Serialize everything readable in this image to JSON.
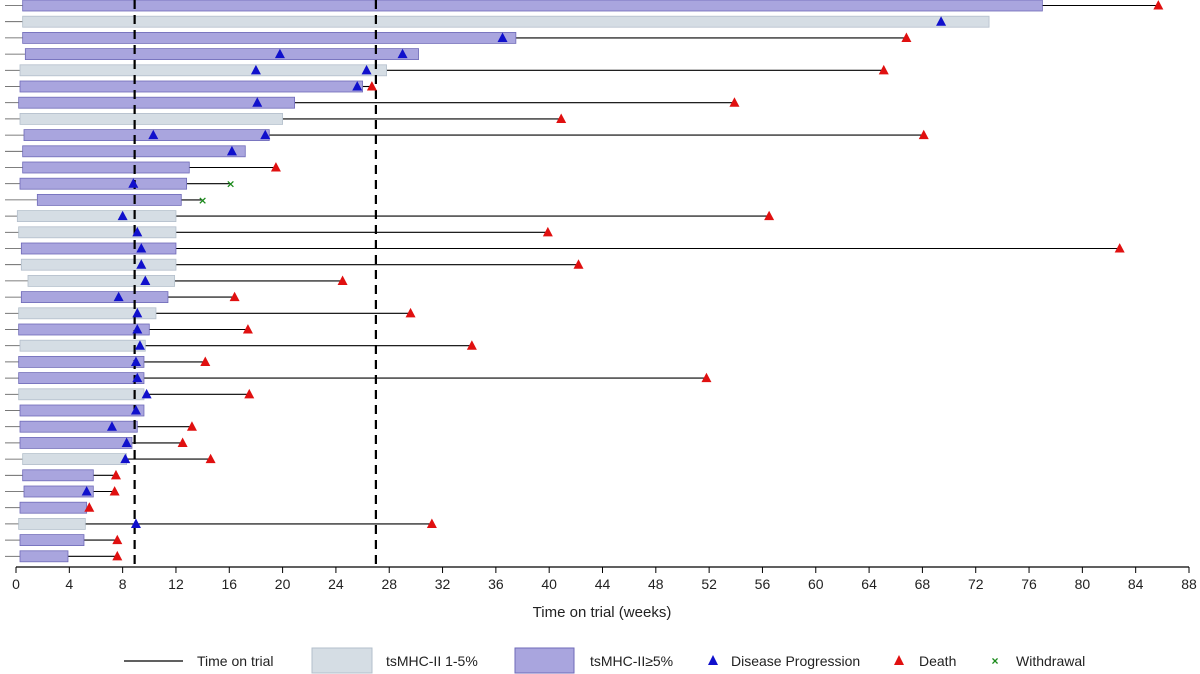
{
  "chart_data": {
    "type": "swimmer",
    "xlabel": "Time on trial (weeks)",
    "xlim": [
      0,
      88
    ],
    "xticks": [
      0,
      4,
      8,
      12,
      16,
      20,
      24,
      28,
      32,
      36,
      40,
      44,
      48,
      52,
      56,
      60,
      64,
      68,
      72,
      76,
      80,
      84,
      88
    ],
    "reference_lines": [
      8.9,
      27
    ],
    "colors": {
      "group_low": "#d5dde4",
      "group_high": "#a9a5de",
      "bar_border_low": "#b3bfcb",
      "bar_border_high": "#6f6ab8",
      "line": "#000000",
      "progression": "#1010cc",
      "death": "#e01010",
      "withdrawal": "#1a8a1a"
    },
    "legend": {
      "time_on_trial": "Time on trial",
      "group_low": "tsMHC-II 1-5%",
      "group_high": "tsMHC-II≥5%",
      "progression": "Disease Progression",
      "death": "Death",
      "withdrawal": "Withdrawal"
    },
    "patients": [
      {
        "bar_start": 0.5,
        "bar_end": 77,
        "group": "high",
        "end": 85.7,
        "progression": [],
        "death": 85.7,
        "withdrawal": null
      },
      {
        "bar_start": 0.5,
        "bar_end": 73,
        "group": "low",
        "end": 73,
        "progression": [
          69.4
        ],
        "death": null,
        "withdrawal": null
      },
      {
        "bar_start": 0.5,
        "bar_end": 37.5,
        "group": "high",
        "end": 66.8,
        "progression": [
          36.5
        ],
        "death": 66.8,
        "withdrawal": null
      },
      {
        "bar_start": 0.7,
        "bar_end": 30.2,
        "group": "high",
        "end": 30.2,
        "progression": [
          19.8,
          29.0
        ],
        "death": null,
        "withdrawal": null
      },
      {
        "bar_start": 0.3,
        "bar_end": 27.8,
        "group": "low",
        "end": 65.1,
        "progression": [
          18.0,
          26.3
        ],
        "death": 65.1,
        "withdrawal": null
      },
      {
        "bar_start": 0.3,
        "bar_end": 26.0,
        "group": "high",
        "end": 26.7,
        "progression": [
          25.6
        ],
        "death": 26.7,
        "withdrawal": null
      },
      {
        "bar_start": 0.2,
        "bar_end": 20.9,
        "group": "high",
        "end": 53.9,
        "progression": [
          18.1
        ],
        "death": 53.9,
        "withdrawal": null
      },
      {
        "bar_start": 0.3,
        "bar_end": 20.0,
        "group": "low",
        "end": 40.9,
        "progression": [],
        "death": 40.9,
        "withdrawal": null
      },
      {
        "bar_start": 0.6,
        "bar_end": 19.0,
        "group": "high",
        "end": 68.1,
        "progression": [
          10.3,
          18.7
        ],
        "death": 68.1,
        "withdrawal": null
      },
      {
        "bar_start": 0.5,
        "bar_end": 17.2,
        "group": "high",
        "end": 17.2,
        "progression": [
          16.2
        ],
        "death": null,
        "withdrawal": null
      },
      {
        "bar_start": 0.5,
        "bar_end": 13.0,
        "group": "high",
        "end": 19.5,
        "progression": [],
        "death": 19.5,
        "withdrawal": null
      },
      {
        "bar_start": 0.3,
        "bar_end": 12.8,
        "group": "high",
        "end": 16.1,
        "progression": [
          8.8
        ],
        "death": null,
        "withdrawal": 16.1
      },
      {
        "bar_start": 1.6,
        "bar_end": 12.4,
        "group": "high",
        "end": 14.0,
        "progression": [],
        "death": null,
        "withdrawal": 14.0
      },
      {
        "bar_start": 0.1,
        "bar_end": 12.0,
        "group": "low",
        "end": 56.5,
        "progression": [
          8.0
        ],
        "death": 56.5,
        "withdrawal": null
      },
      {
        "bar_start": 0.2,
        "bar_end": 12.0,
        "group": "low",
        "end": 39.9,
        "progression": [
          9.1
        ],
        "death": 39.9,
        "withdrawal": null
      },
      {
        "bar_start": 0.4,
        "bar_end": 12.0,
        "group": "high",
        "end": 82.8,
        "progression": [
          9.4
        ],
        "death": 82.8,
        "withdrawal": null
      },
      {
        "bar_start": 0.4,
        "bar_end": 12.0,
        "group": "low",
        "end": 42.2,
        "progression": [
          9.4
        ],
        "death": 42.2,
        "withdrawal": null
      },
      {
        "bar_start": 0.9,
        "bar_end": 11.9,
        "group": "low",
        "end": 24.5,
        "progression": [
          9.7
        ],
        "death": 24.5,
        "withdrawal": null
      },
      {
        "bar_start": 0.4,
        "bar_end": 11.4,
        "group": "high",
        "end": 16.4,
        "progression": [
          7.7
        ],
        "death": 16.4,
        "withdrawal": null
      },
      {
        "bar_start": 0.2,
        "bar_end": 10.5,
        "group": "low",
        "end": 29.6,
        "progression": [
          9.1
        ],
        "death": 29.6,
        "withdrawal": null
      },
      {
        "bar_start": 0.2,
        "bar_end": 10.0,
        "group": "high",
        "end": 17.4,
        "progression": [
          9.1
        ],
        "death": 17.4,
        "withdrawal": null
      },
      {
        "bar_start": 0.3,
        "bar_end": 9.7,
        "group": "low",
        "end": 34.2,
        "progression": [
          9.3
        ],
        "death": 34.2,
        "withdrawal": null
      },
      {
        "bar_start": 0.2,
        "bar_end": 9.6,
        "group": "high",
        "end": 14.2,
        "progression": [
          9.0
        ],
        "death": 14.2,
        "withdrawal": null
      },
      {
        "bar_start": 0.2,
        "bar_end": 9.6,
        "group": "high",
        "end": 51.8,
        "progression": [
          9.1
        ],
        "death": 51.8,
        "withdrawal": null
      },
      {
        "bar_start": 0.2,
        "bar_end": 9.6,
        "group": "low",
        "end": 17.5,
        "progression": [
          9.8
        ],
        "death": 17.5,
        "withdrawal": null
      },
      {
        "bar_start": 0.3,
        "bar_end": 9.6,
        "group": "high",
        "end": 9.6,
        "progression": [
          9.0
        ],
        "death": null,
        "withdrawal": null
      },
      {
        "bar_start": 0.3,
        "bar_end": 9.1,
        "group": "high",
        "end": 13.2,
        "progression": [
          7.2
        ],
        "death": 13.2,
        "withdrawal": null
      },
      {
        "bar_start": 0.3,
        "bar_end": 8.7,
        "group": "high",
        "end": 12.5,
        "progression": [
          8.3
        ],
        "death": 12.5,
        "withdrawal": null
      },
      {
        "bar_start": 0.5,
        "bar_end": 8.3,
        "group": "low",
        "end": 14.6,
        "progression": [
          8.2
        ],
        "death": 14.6,
        "withdrawal": null
      },
      {
        "bar_start": 0.5,
        "bar_end": 5.8,
        "group": "high",
        "end": 7.5,
        "progression": [],
        "death": 7.5,
        "withdrawal": null
      },
      {
        "bar_start": 0.6,
        "bar_end": 5.8,
        "group": "high",
        "end": 7.4,
        "progression": [
          5.3
        ],
        "death": 7.4,
        "withdrawal": null
      },
      {
        "bar_start": 0.3,
        "bar_end": 5.3,
        "group": "high",
        "end": 5.5,
        "progression": [],
        "death": 5.5,
        "withdrawal": null
      },
      {
        "bar_start": 0.2,
        "bar_end": 5.2,
        "group": "low",
        "end": 31.2,
        "progression": [
          9.0
        ],
        "death": 31.2,
        "withdrawal": null
      },
      {
        "bar_start": 0.3,
        "bar_end": 5.1,
        "group": "high",
        "end": 7.6,
        "progression": [],
        "death": 7.6,
        "withdrawal": null
      },
      {
        "bar_start": 0.3,
        "bar_end": 3.9,
        "group": "high",
        "end": 7.6,
        "progression": [],
        "death": 7.6,
        "withdrawal": null
      }
    ]
  }
}
